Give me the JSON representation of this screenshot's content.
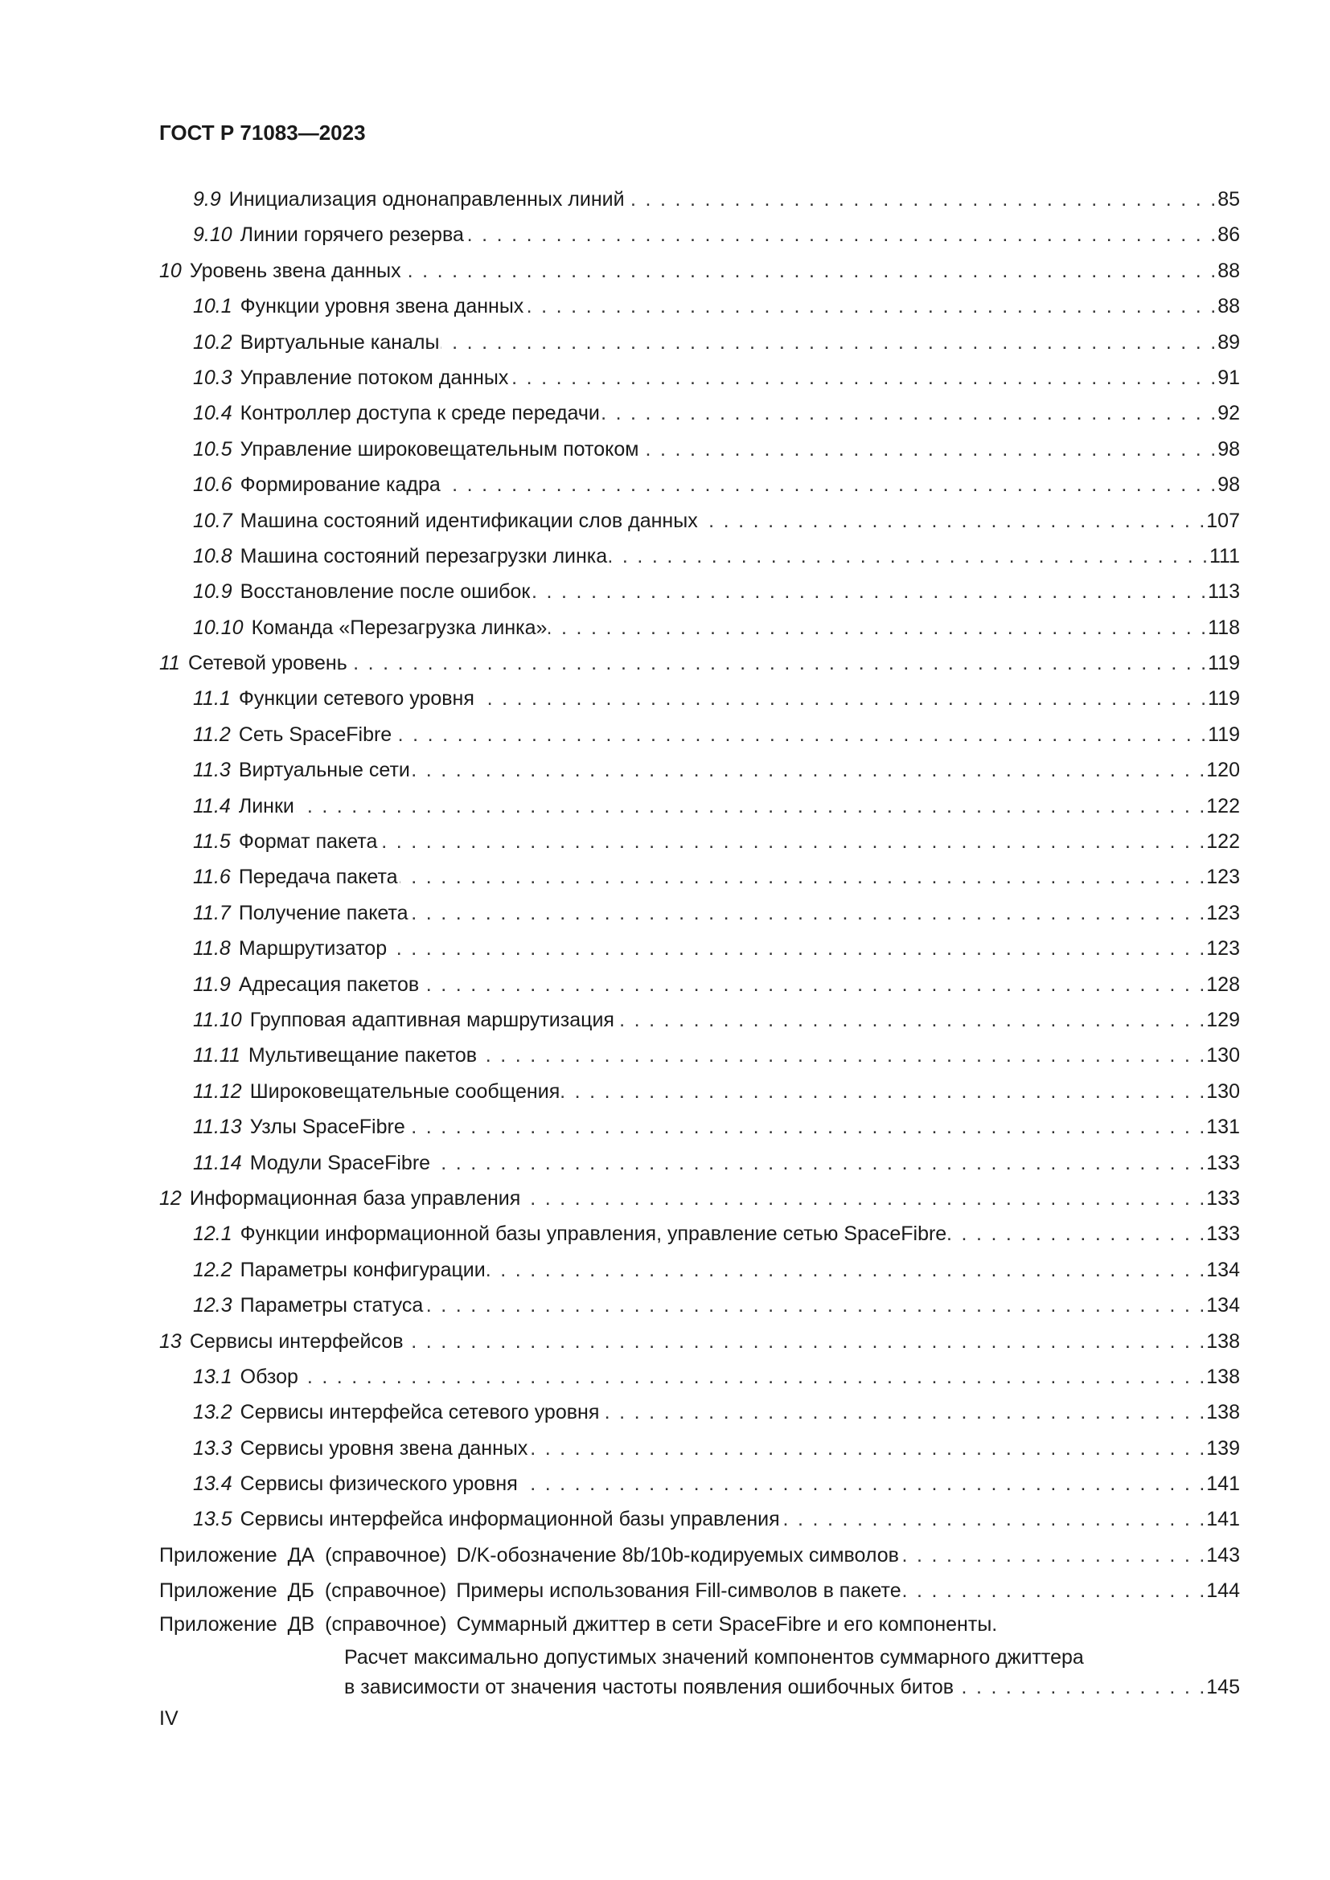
{
  "header": {
    "doc_code": "ГОСТ Р 71083—2023"
  },
  "toc": [
    {
      "level": 2,
      "num": "9.9",
      "title": "Инициализация однонаправленных линий",
      "page": "85"
    },
    {
      "level": 2,
      "num": "9.10",
      "title": "Линии горячего резерва",
      "page": "86"
    },
    {
      "level": 1,
      "num": "10",
      "title": "Уровень звена данных",
      "page": "88"
    },
    {
      "level": 2,
      "num": "10.1",
      "title": "Функции уровня звена данных",
      "page": "88"
    },
    {
      "level": 2,
      "num": "10.2",
      "title": "Виртуальные каналы",
      "page": "89"
    },
    {
      "level": 2,
      "num": "10.3",
      "title": "Управление потоком данных",
      "page": "91"
    },
    {
      "level": 2,
      "num": "10.4",
      "title": "Контроллер доступа к среде передачи",
      "page": "92"
    },
    {
      "level": 2,
      "num": "10.5",
      "title": "Управление широковещательным потоком",
      "page": "98"
    },
    {
      "level": 2,
      "num": "10.6",
      "title": "Формирование кадра",
      "page": "98"
    },
    {
      "level": 2,
      "num": "10.7",
      "title": "Машина состояний идентификации слов данных",
      "page": "107"
    },
    {
      "level": 2,
      "num": "10.8",
      "title": "Машина состояний перезагрузки линка",
      "page": "111"
    },
    {
      "level": 2,
      "num": "10.9",
      "title": "Восстановление после ошибок",
      "page": "113"
    },
    {
      "level": 2,
      "num": "10.10",
      "title": "Команда «Перезагрузка линка»",
      "page": "118"
    },
    {
      "level": 1,
      "num": "11",
      "title": "Сетевой уровень",
      "page": "119"
    },
    {
      "level": 2,
      "num": "11.1",
      "title": "Функции сетевого уровня",
      "page": "119"
    },
    {
      "level": 2,
      "num": "11.2",
      "title": "Сеть SpaceFibre",
      "page": "119"
    },
    {
      "level": 2,
      "num": "11.3",
      "title": "Виртуальные сети",
      "page": "120"
    },
    {
      "level": 2,
      "num": "11.4",
      "title": "Линки",
      "page": "122"
    },
    {
      "level": 2,
      "num": "11.5",
      "title": "Формат пакета",
      "page": "122"
    },
    {
      "level": 2,
      "num": "11.6",
      "title": "Передача пакета",
      "page": "123"
    },
    {
      "level": 2,
      "num": "11.7",
      "title": "Получение пакета",
      "page": "123"
    },
    {
      "level": 2,
      "num": "11.8",
      "title": "Маршрутизатор",
      "page": "123"
    },
    {
      "level": 2,
      "num": "11.9",
      "title": "Адресация пакетов",
      "page": "128"
    },
    {
      "level": 2,
      "num": "11.10",
      "title": "Групповая адаптивная маршрутизация",
      "page": "129"
    },
    {
      "level": 2,
      "num": "11.11",
      "title": "Мультивещание пакетов",
      "page": "130"
    },
    {
      "level": 2,
      "num": "11.12",
      "title": "Широковещательные сообщения",
      "page": "130"
    },
    {
      "level": 2,
      "num": "11.13",
      "title": "Узлы SpaceFibre",
      "page": "131"
    },
    {
      "level": 2,
      "num": "11.14",
      "title": "Модули SpaceFibre",
      "page": "133"
    },
    {
      "level": 1,
      "num": "12",
      "title": "Информационная база управления",
      "page": "133"
    },
    {
      "level": 2,
      "num": "12.1",
      "title": "Функции информационной базы управления, управление сетью SpaceFibre",
      "page": "133"
    },
    {
      "level": 2,
      "num": "12.2",
      "title": "Параметры конфигурации",
      "page": "134"
    },
    {
      "level": 2,
      "num": "12.3",
      "title": "Параметры статуса",
      "page": "134"
    },
    {
      "level": 1,
      "num": "13",
      "title": "Сервисы интерфейсов",
      "page": "138"
    },
    {
      "level": 2,
      "num": "13.1",
      "title": "Обзор",
      "page": "138"
    },
    {
      "level": 2,
      "num": "13.2",
      "title": "Сервисы интерфейса сетевого уровня",
      "page": "138"
    },
    {
      "level": 2,
      "num": "13.3",
      "title": "Сервисы уровня звена данных",
      "page": "139"
    },
    {
      "level": 2,
      "num": "13.4",
      "title": "Сервисы физического уровня",
      "page": "141"
    },
    {
      "level": 2,
      "num": "13.5",
      "title": "Сервисы интерфейса информационной базы управления",
      "page": "141"
    }
  ],
  "appendices": [
    {
      "label": "Приложение ДА (справочное)",
      "lines": [
        "D/K-обозначение 8b/10b-кодируемых символов"
      ],
      "page": "143"
    },
    {
      "label": "Приложение ДБ (справочное)",
      "lines": [
        "Примеры использования Fill-символов в пакете"
      ],
      "page": "144"
    },
    {
      "label": "Приложение ДВ (справочное)",
      "lines": [
        "Суммарный джиттер в сети SpaceFibre и его компоненты.",
        "Расчет максимально допустимых значений компонентов суммарного джиттера",
        "в зависимости от значения частоты появления ошибочных битов"
      ],
      "page": "145"
    }
  ],
  "footer": {
    "page_number": "IV"
  }
}
